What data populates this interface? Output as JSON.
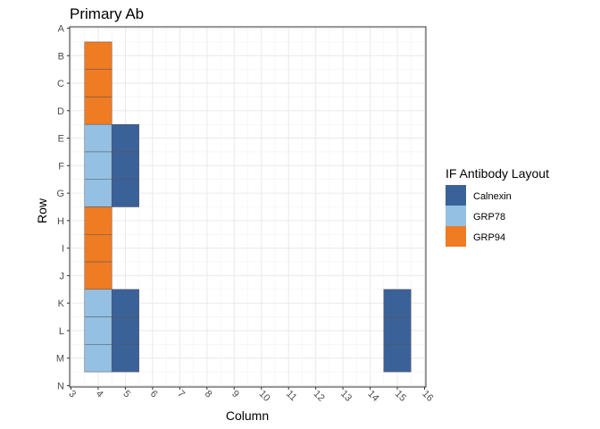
{
  "chart_data": {
    "type": "heatmap",
    "title": "Primary Ab",
    "xlabel": "Column",
    "ylabel": "Row",
    "xlim": [
      3,
      16
    ],
    "x_ticks": [
      3,
      4,
      5,
      6,
      7,
      8,
      9,
      10,
      11,
      12,
      13,
      14,
      15,
      16
    ],
    "y_categories": [
      "A",
      "B",
      "C",
      "D",
      "E",
      "F",
      "G",
      "H",
      "I",
      "J",
      "K",
      "L",
      "M",
      "N"
    ],
    "grid": true,
    "legend": {
      "title": "IF Antibody Layout",
      "position": "right",
      "entries": [
        {
          "name": "Calnexin",
          "color": "#3b6199"
        },
        {
          "name": "GRP78",
          "color": "#94c0e3"
        },
        {
          "name": "GRP94",
          "color": "#ef7b22"
        }
      ]
    },
    "cells": [
      {
        "row": "B",
        "col": 4,
        "antibody": "GRP94"
      },
      {
        "row": "C",
        "col": 4,
        "antibody": "GRP94"
      },
      {
        "row": "D",
        "col": 4,
        "antibody": "GRP94"
      },
      {
        "row": "E",
        "col": 4,
        "antibody": "GRP78"
      },
      {
        "row": "F",
        "col": 4,
        "antibody": "GRP78"
      },
      {
        "row": "G",
        "col": 4,
        "antibody": "GRP78"
      },
      {
        "row": "E",
        "col": 5,
        "antibody": "Calnexin"
      },
      {
        "row": "F",
        "col": 5,
        "antibody": "Calnexin"
      },
      {
        "row": "G",
        "col": 5,
        "antibody": "Calnexin"
      },
      {
        "row": "H",
        "col": 4,
        "antibody": "GRP94"
      },
      {
        "row": "I",
        "col": 4,
        "antibody": "GRP94"
      },
      {
        "row": "J",
        "col": 4,
        "antibody": "GRP94"
      },
      {
        "row": "K",
        "col": 4,
        "antibody": "GRP78"
      },
      {
        "row": "L",
        "col": 4,
        "antibody": "GRP78"
      },
      {
        "row": "M",
        "col": 4,
        "antibody": "GRP78"
      },
      {
        "row": "K",
        "col": 5,
        "antibody": "Calnexin"
      },
      {
        "row": "L",
        "col": 5,
        "antibody": "Calnexin"
      },
      {
        "row": "M",
        "col": 5,
        "antibody": "Calnexin"
      },
      {
        "row": "K",
        "col": 15,
        "antibody": "Calnexin"
      },
      {
        "row": "L",
        "col": 15,
        "antibody": "Calnexin"
      },
      {
        "row": "M",
        "col": 15,
        "antibody": "Calnexin"
      }
    ]
  }
}
